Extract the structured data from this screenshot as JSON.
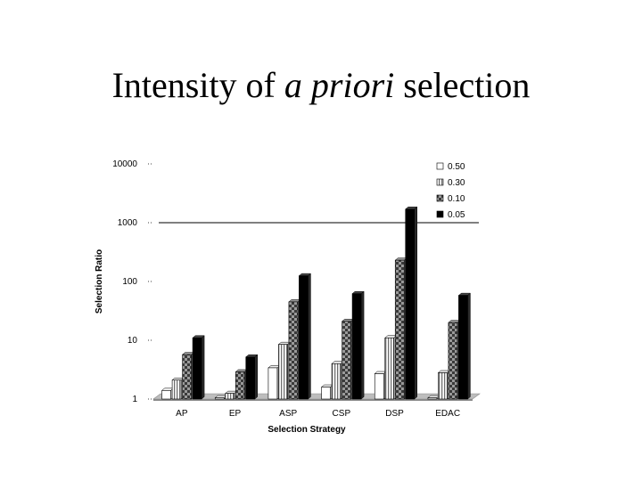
{
  "slide": {
    "title_before": "Intensity of ",
    "title_italic": "a priori",
    "title_after": " selection"
  },
  "chart_data": {
    "type": "bar",
    "title": "Intensity of a priori selection",
    "xlabel": "Selection Strategy",
    "ylabel": "Selection Ratio",
    "yscale": "log",
    "ylim": [
      1,
      10000
    ],
    "yticks": [
      1,
      10,
      100,
      1000,
      10000
    ],
    "ytick_labels": [
      "1",
      "10",
      "100",
      "1000",
      "10000"
    ],
    "categories": [
      "AP",
      "EP",
      "ASP",
      "CSP",
      "DSP",
      "EDAC"
    ],
    "series": [
      {
        "name": "0.50",
        "color": "#ffffff",
        "pattern": "white",
        "values": [
          1.4,
          1.05,
          3.4,
          1.6,
          2.7,
          1.05
        ]
      },
      {
        "name": "0.30",
        "color": "#d9d9d9",
        "pattern": "vertical-stripe",
        "values": [
          2.1,
          1.25,
          8.5,
          4.0,
          11,
          2.8
        ]
      },
      {
        "name": "0.10",
        "color": "#7f7f7f",
        "pattern": "dark-checker",
        "values": [
          5.7,
          2.9,
          45,
          21,
          230,
          20
        ]
      },
      {
        "name": "0.05",
        "color": "#000000",
        "pattern": "black",
        "values": [
          11,
          5.2,
          125,
          62,
          1700,
          58
        ]
      }
    ],
    "grid": false,
    "legend": "top-right",
    "reference_line": 1000
  }
}
